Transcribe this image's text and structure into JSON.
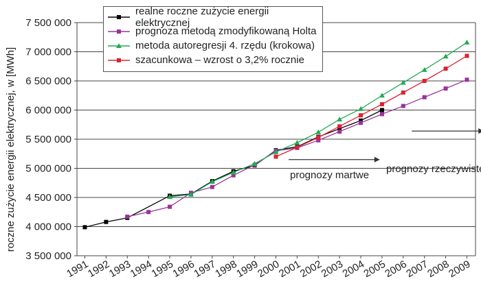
{
  "chart_data": {
    "type": "line",
    "ylabel": "roczne zużycie energii elektrycznej, w [MWh]",
    "xlabel": "",
    "ylim": [
      3500000,
      7500000
    ],
    "yticks": [
      3500000,
      4000000,
      4500000,
      5000000,
      5500000,
      6000000,
      6500000,
      7000000,
      7500000
    ],
    "ytick_labels": [
      "3 500 000",
      "4 000 000",
      "4 500 000",
      "5 000 000",
      "5 500 000",
      "6 000 000",
      "6 500 000",
      "7 000 000",
      "7 500 000"
    ],
    "x": [
      1991,
      1992,
      1993,
      1994,
      1995,
      1996,
      1997,
      1998,
      1999,
      2000,
      2001,
      2002,
      2003,
      2004,
      2005,
      2006,
      2007,
      2008,
      2009
    ],
    "xtick_labels": [
      "1991",
      "1992",
      "1993",
      "1994",
      "1995",
      "1996",
      "1997",
      "1998",
      "1999",
      "2000",
      "2001",
      "2002",
      "2003",
      "2004",
      "2005",
      "2006",
      "2007",
      "2008",
      "2009"
    ],
    "grid": "horizontal",
    "legend_position": "top-left",
    "series": [
      {
        "name": "realne roczne zużycie energii elektrycznej",
        "color": "#000000",
        "marker": "square",
        "x": [
          1991,
          1992,
          1993,
          1995,
          1996,
          1997,
          1998,
          1999,
          2000,
          2001,
          2002,
          2003,
          2004,
          2005
        ],
        "values": [
          3990000,
          4080000,
          4150000,
          4530000,
          4560000,
          4780000,
          4950000,
          5050000,
          5310000,
          5370000,
          5540000,
          5680000,
          5820000,
          6000000
        ]
      },
      {
        "name": "prognoza metodą zmodyfikowaną Holta",
        "color": "#993399",
        "marker": "square",
        "x": [
          1993,
          1994,
          1995,
          1996,
          1997,
          1998,
          1999,
          2000,
          2001,
          2002,
          2003,
          2004,
          2005,
          2006,
          2007,
          2008,
          2009
        ],
        "values": [
          4170000,
          4250000,
          4340000,
          4580000,
          4680000,
          4880000,
          5060000,
          5300000,
          5350000,
          5480000,
          5630000,
          5780000,
          5930000,
          6070000,
          6220000,
          6370000,
          6520000
        ]
      },
      {
        "name": "metoda autoregresji 4. rzędu (krokowa)",
        "color": "#22aa55",
        "marker": "triangle",
        "x": [
          1995,
          1996,
          1997,
          1998,
          1999,
          2000,
          2001,
          2002,
          2003,
          2004,
          2005,
          2006,
          2007,
          2008,
          2009
        ],
        "values": [
          4510000,
          4550000,
          4770000,
          4930000,
          5080000,
          5280000,
          5440000,
          5620000,
          5840000,
          6020000,
          6250000,
          6470000,
          6690000,
          6920000,
          7160000
        ]
      },
      {
        "name": "szacunkowa – wzrost o 3,2% rocznie",
        "color": "#dd2233",
        "marker": "square",
        "x": [
          2000,
          2001,
          2002,
          2003,
          2004,
          2005,
          2006,
          2007,
          2008,
          2009
        ],
        "values": [
          5200000,
          5360000,
          5530000,
          5720000,
          5910000,
          6100000,
          6300000,
          6500000,
          6710000,
          6930000
        ]
      }
    ],
    "annotations": [
      {
        "text": "prognozy rzeczywiste",
        "arrow_from_x": 2006.4,
        "arrow_to_x": 2009.8,
        "arrow_y": 5640000
      },
      {
        "text": "prognozy martwe",
        "arrow_from_x": 2000.6,
        "arrow_to_x": 2004.9,
        "arrow_y": 5150000
      }
    ]
  }
}
